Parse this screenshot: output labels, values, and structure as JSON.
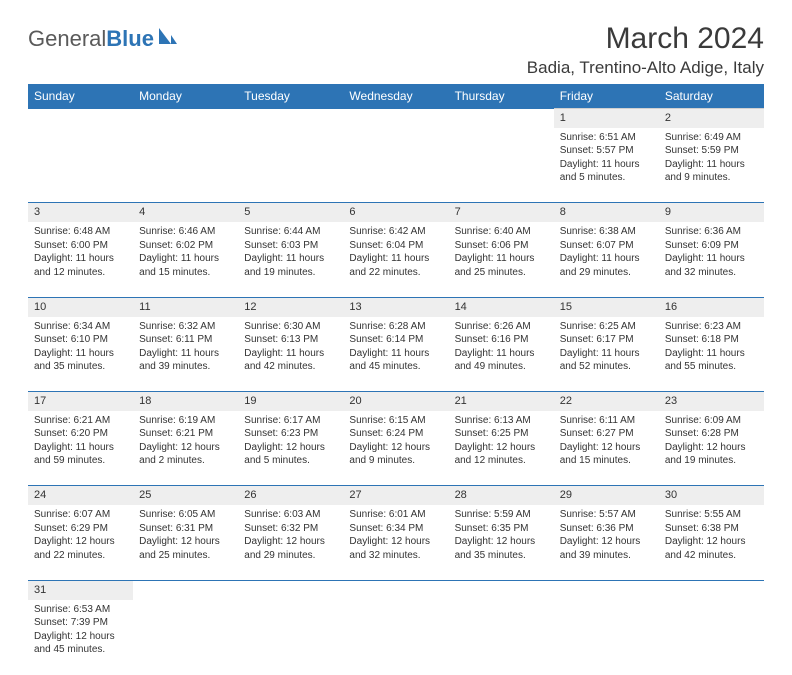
{
  "brand": {
    "part1": "General",
    "part2": "Blue"
  },
  "title": "March 2024",
  "location": "Badia, Trentino-Alto Adige, Italy",
  "colors": {
    "header_bg": "#2d74b5",
    "header_text": "#ffffff",
    "daynum_bg": "#eeeeee",
    "divider": "#2d74b5",
    "text": "#333333",
    "background": "#ffffff"
  },
  "day_headers": [
    "Sunday",
    "Monday",
    "Tuesday",
    "Wednesday",
    "Thursday",
    "Friday",
    "Saturday"
  ],
  "weeks": [
    {
      "nums": [
        "",
        "",
        "",
        "",
        "",
        "1",
        "2"
      ],
      "cells": [
        null,
        null,
        null,
        null,
        null,
        {
          "sunrise": "Sunrise: 6:51 AM",
          "sunset": "Sunset: 5:57 PM",
          "day1": "Daylight: 11 hours",
          "day2": "and 5 minutes."
        },
        {
          "sunrise": "Sunrise: 6:49 AM",
          "sunset": "Sunset: 5:59 PM",
          "day1": "Daylight: 11 hours",
          "day2": "and 9 minutes."
        }
      ]
    },
    {
      "nums": [
        "3",
        "4",
        "5",
        "6",
        "7",
        "8",
        "9"
      ],
      "cells": [
        {
          "sunrise": "Sunrise: 6:48 AM",
          "sunset": "Sunset: 6:00 PM",
          "day1": "Daylight: 11 hours",
          "day2": "and 12 minutes."
        },
        {
          "sunrise": "Sunrise: 6:46 AM",
          "sunset": "Sunset: 6:02 PM",
          "day1": "Daylight: 11 hours",
          "day2": "and 15 minutes."
        },
        {
          "sunrise": "Sunrise: 6:44 AM",
          "sunset": "Sunset: 6:03 PM",
          "day1": "Daylight: 11 hours",
          "day2": "and 19 minutes."
        },
        {
          "sunrise": "Sunrise: 6:42 AM",
          "sunset": "Sunset: 6:04 PM",
          "day1": "Daylight: 11 hours",
          "day2": "and 22 minutes."
        },
        {
          "sunrise": "Sunrise: 6:40 AM",
          "sunset": "Sunset: 6:06 PM",
          "day1": "Daylight: 11 hours",
          "day2": "and 25 minutes."
        },
        {
          "sunrise": "Sunrise: 6:38 AM",
          "sunset": "Sunset: 6:07 PM",
          "day1": "Daylight: 11 hours",
          "day2": "and 29 minutes."
        },
        {
          "sunrise": "Sunrise: 6:36 AM",
          "sunset": "Sunset: 6:09 PM",
          "day1": "Daylight: 11 hours",
          "day2": "and 32 minutes."
        }
      ]
    },
    {
      "nums": [
        "10",
        "11",
        "12",
        "13",
        "14",
        "15",
        "16"
      ],
      "cells": [
        {
          "sunrise": "Sunrise: 6:34 AM",
          "sunset": "Sunset: 6:10 PM",
          "day1": "Daylight: 11 hours",
          "day2": "and 35 minutes."
        },
        {
          "sunrise": "Sunrise: 6:32 AM",
          "sunset": "Sunset: 6:11 PM",
          "day1": "Daylight: 11 hours",
          "day2": "and 39 minutes."
        },
        {
          "sunrise": "Sunrise: 6:30 AM",
          "sunset": "Sunset: 6:13 PM",
          "day1": "Daylight: 11 hours",
          "day2": "and 42 minutes."
        },
        {
          "sunrise": "Sunrise: 6:28 AM",
          "sunset": "Sunset: 6:14 PM",
          "day1": "Daylight: 11 hours",
          "day2": "and 45 minutes."
        },
        {
          "sunrise": "Sunrise: 6:26 AM",
          "sunset": "Sunset: 6:16 PM",
          "day1": "Daylight: 11 hours",
          "day2": "and 49 minutes."
        },
        {
          "sunrise": "Sunrise: 6:25 AM",
          "sunset": "Sunset: 6:17 PM",
          "day1": "Daylight: 11 hours",
          "day2": "and 52 minutes."
        },
        {
          "sunrise": "Sunrise: 6:23 AM",
          "sunset": "Sunset: 6:18 PM",
          "day1": "Daylight: 11 hours",
          "day2": "and 55 minutes."
        }
      ]
    },
    {
      "nums": [
        "17",
        "18",
        "19",
        "20",
        "21",
        "22",
        "23"
      ],
      "cells": [
        {
          "sunrise": "Sunrise: 6:21 AM",
          "sunset": "Sunset: 6:20 PM",
          "day1": "Daylight: 11 hours",
          "day2": "and 59 minutes."
        },
        {
          "sunrise": "Sunrise: 6:19 AM",
          "sunset": "Sunset: 6:21 PM",
          "day1": "Daylight: 12 hours",
          "day2": "and 2 minutes."
        },
        {
          "sunrise": "Sunrise: 6:17 AM",
          "sunset": "Sunset: 6:23 PM",
          "day1": "Daylight: 12 hours",
          "day2": "and 5 minutes."
        },
        {
          "sunrise": "Sunrise: 6:15 AM",
          "sunset": "Sunset: 6:24 PM",
          "day1": "Daylight: 12 hours",
          "day2": "and 9 minutes."
        },
        {
          "sunrise": "Sunrise: 6:13 AM",
          "sunset": "Sunset: 6:25 PM",
          "day1": "Daylight: 12 hours",
          "day2": "and 12 minutes."
        },
        {
          "sunrise": "Sunrise: 6:11 AM",
          "sunset": "Sunset: 6:27 PM",
          "day1": "Daylight: 12 hours",
          "day2": "and 15 minutes."
        },
        {
          "sunrise": "Sunrise: 6:09 AM",
          "sunset": "Sunset: 6:28 PM",
          "day1": "Daylight: 12 hours",
          "day2": "and 19 minutes."
        }
      ]
    },
    {
      "nums": [
        "24",
        "25",
        "26",
        "27",
        "28",
        "29",
        "30"
      ],
      "cells": [
        {
          "sunrise": "Sunrise: 6:07 AM",
          "sunset": "Sunset: 6:29 PM",
          "day1": "Daylight: 12 hours",
          "day2": "and 22 minutes."
        },
        {
          "sunrise": "Sunrise: 6:05 AM",
          "sunset": "Sunset: 6:31 PM",
          "day1": "Daylight: 12 hours",
          "day2": "and 25 minutes."
        },
        {
          "sunrise": "Sunrise: 6:03 AM",
          "sunset": "Sunset: 6:32 PM",
          "day1": "Daylight: 12 hours",
          "day2": "and 29 minutes."
        },
        {
          "sunrise": "Sunrise: 6:01 AM",
          "sunset": "Sunset: 6:34 PM",
          "day1": "Daylight: 12 hours",
          "day2": "and 32 minutes."
        },
        {
          "sunrise": "Sunrise: 5:59 AM",
          "sunset": "Sunset: 6:35 PM",
          "day1": "Daylight: 12 hours",
          "day2": "and 35 minutes."
        },
        {
          "sunrise": "Sunrise: 5:57 AM",
          "sunset": "Sunset: 6:36 PM",
          "day1": "Daylight: 12 hours",
          "day2": "and 39 minutes."
        },
        {
          "sunrise": "Sunrise: 5:55 AM",
          "sunset": "Sunset: 6:38 PM",
          "day1": "Daylight: 12 hours",
          "day2": "and 42 minutes."
        }
      ]
    },
    {
      "nums": [
        "31",
        "",
        "",
        "",
        "",
        "",
        ""
      ],
      "cells": [
        {
          "sunrise": "Sunrise: 6:53 AM",
          "sunset": "Sunset: 7:39 PM",
          "day1": "Daylight: 12 hours",
          "day2": "and 45 minutes."
        },
        null,
        null,
        null,
        null,
        null,
        null
      ]
    }
  ]
}
